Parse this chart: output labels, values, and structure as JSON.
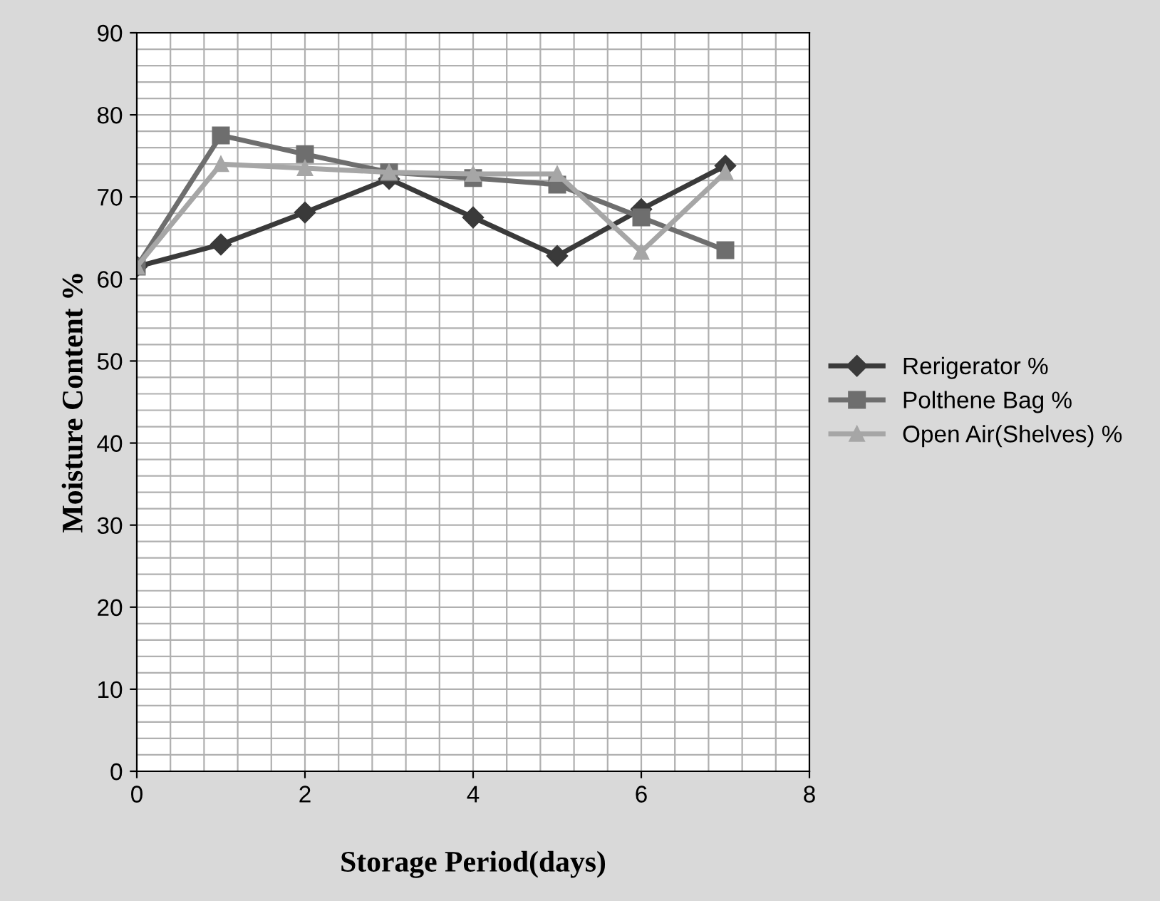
{
  "chart_data": {
    "type": "line",
    "xlabel": "Storage Period(days)",
    "ylabel": "Moisture Content %",
    "x": [
      0,
      1,
      2,
      3,
      4,
      5,
      6,
      7
    ],
    "series": [
      {
        "name": "Rerigerator %",
        "color": "#3a3a3a",
        "marker": "diamond",
        "values": [
          61.5,
          64.2,
          68.1,
          72.2,
          67.5,
          62.8,
          68.5,
          73.8
        ]
      },
      {
        "name": "Polthene Bag %",
        "color": "#6e6e6e",
        "marker": "square",
        "values": [
          61.5,
          77.5,
          75.2,
          73.0,
          72.3,
          71.5,
          67.5,
          63.5
        ]
      },
      {
        "name": "Open Air(Shelves) %",
        "color": "#a6a6a6",
        "marker": "triangle",
        "values": [
          61.5,
          74.0,
          73.5,
          73.0,
          72.8,
          72.8,
          63.3,
          73.0
        ]
      }
    ],
    "xlim": [
      0,
      8
    ],
    "xticks": [
      0,
      2,
      4,
      6,
      8
    ],
    "ylim": [
      0,
      90
    ],
    "yticks": [
      0,
      10,
      20,
      30,
      40,
      50,
      60,
      70,
      80,
      90
    ],
    "grid": true,
    "legend": "right"
  }
}
